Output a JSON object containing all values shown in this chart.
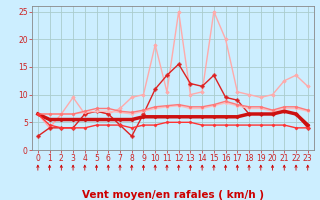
{
  "title": "",
  "xlabel": "Vent moyen/en rafales ( km/h )",
  "background_color": "#cceeff",
  "grid_color": "#aacccc",
  "xlim": [
    -0.5,
    23.5
  ],
  "ylim": [
    0,
    26
  ],
  "yticks": [
    0,
    5,
    10,
    15,
    20,
    25
  ],
  "xticks": [
    0,
    1,
    2,
    3,
    4,
    5,
    6,
    7,
    8,
    9,
    10,
    11,
    12,
    13,
    14,
    15,
    16,
    17,
    18,
    19,
    20,
    21,
    22,
    23
  ],
  "series": [
    {
      "name": "rafales_light",
      "color": "#ffaaaa",
      "lw": 1.0,
      "marker": "D",
      "markersize": 1.8,
      "markerfacecolor": "#ffaaaa",
      "y": [
        6.5,
        4.0,
        6.5,
        9.5,
        6.5,
        7.0,
        6.5,
        7.5,
        9.5,
        10.0,
        19.0,
        10.5,
        25.0,
        10.0,
        10.5,
        25.0,
        20.0,
        10.5,
        10.0,
        9.5,
        10.0,
        12.5,
        13.5,
        11.5
      ]
    },
    {
      "name": "moyen_dark",
      "color": "#dd2222",
      "lw": 1.0,
      "marker": "P",
      "markersize": 2.5,
      "markerfacecolor": "#dd2222",
      "y": [
        2.5,
        4.0,
        4.0,
        4.0,
        6.5,
        7.0,
        6.5,
        4.5,
        2.5,
        6.5,
        11.0,
        13.5,
        15.5,
        12.0,
        11.5,
        13.5,
        9.5,
        9.0,
        6.5,
        6.5,
        6.5,
        7.0,
        6.5,
        4.0
      ]
    },
    {
      "name": "avg_light1",
      "color": "#ffbbbb",
      "lw": 1.0,
      "marker": "D",
      "markersize": 1.5,
      "markerfacecolor": "#ffbbbb",
      "y": [
        6.5,
        6.5,
        6.5,
        6.5,
        6.8,
        7.0,
        7.0,
        6.8,
        6.5,
        7.0,
        7.5,
        7.8,
        8.0,
        7.5,
        7.5,
        8.0,
        8.5,
        8.0,
        7.5,
        7.5,
        7.0,
        7.5,
        7.5,
        7.0
      ]
    },
    {
      "name": "avg_red_bold",
      "color": "#cc1111",
      "lw": 2.5,
      "marker": "D",
      "markersize": 1.5,
      "markerfacecolor": "#cc1111",
      "y": [
        6.5,
        5.5,
        5.5,
        5.5,
        5.5,
        5.5,
        5.5,
        5.5,
        5.5,
        6.0,
        6.0,
        6.0,
        6.0,
        6.0,
        6.0,
        6.0,
        6.0,
        6.0,
        6.5,
        6.5,
        6.5,
        7.0,
        6.5,
        4.5
      ]
    },
    {
      "name": "avg_med",
      "color": "#ff7777",
      "lw": 1.0,
      "marker": "D",
      "markersize": 1.5,
      "markerfacecolor": "#ff7777",
      "y": [
        6.5,
        6.5,
        6.5,
        6.5,
        7.0,
        7.5,
        7.5,
        7.0,
        6.8,
        7.2,
        7.8,
        8.0,
        8.2,
        7.8,
        7.8,
        8.2,
        8.8,
        8.2,
        7.8,
        7.8,
        7.2,
        7.8,
        7.8,
        7.2
      ]
    },
    {
      "name": "avg_low",
      "color": "#ff3333",
      "lw": 1.0,
      "marker": "D",
      "markersize": 1.5,
      "markerfacecolor": "#ff3333",
      "y": [
        6.5,
        4.5,
        4.0,
        4.0,
        4.0,
        4.5,
        4.5,
        4.5,
        4.0,
        4.5,
        4.5,
        5.0,
        5.0,
        5.0,
        4.5,
        4.5,
        4.5,
        4.5,
        4.5,
        4.5,
        4.5,
        4.5,
        4.0,
        4.0
      ]
    }
  ],
  "arrow_color": "#cc0000",
  "xlabel_color": "#cc0000",
  "xlabel_fontsize": 7.5,
  "tick_fontsize": 5.5,
  "ytick_color": "#cc2222",
  "xtick_color": "#cc2222",
  "spine_color": "#888888"
}
